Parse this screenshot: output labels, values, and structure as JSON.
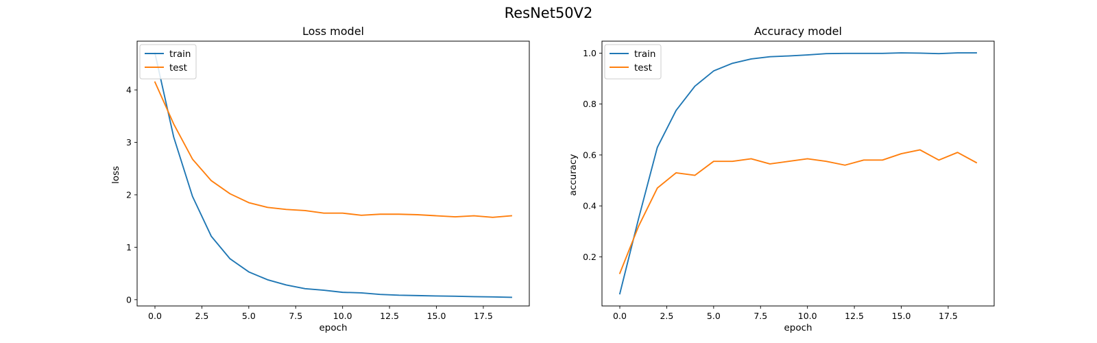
{
  "figure": {
    "suptitle": "ResNet50V2"
  },
  "chart_data": [
    {
      "type": "line",
      "title": "Loss model",
      "xlabel": "epoch",
      "ylabel": "loss",
      "xlim": [
        -0.95,
        19.95
      ],
      "ylim": [
        -0.12,
        4.93
      ],
      "xticks": [
        0,
        2.5,
        5,
        7.5,
        10,
        12.5,
        15,
        17.5
      ],
      "xtick_labels": [
        "0.0",
        "2.5",
        "5.0",
        "7.5",
        "10.0",
        "12.5",
        "15.0",
        "17.5"
      ],
      "yticks": [
        0,
        1,
        2,
        3,
        4
      ],
      "ytick_labels": [
        "0",
        "1",
        "2",
        "3",
        "4"
      ],
      "legend_position": "upper-left",
      "grid": false,
      "x": [
        0,
        1,
        2,
        3,
        4,
        5,
        6,
        7,
        8,
        9,
        10,
        11,
        12,
        13,
        14,
        15,
        16,
        17,
        18,
        19
      ],
      "series": [
        {
          "name": "train",
          "color": "#1f77b4",
          "values": [
            4.7,
            3.1,
            1.97,
            1.21,
            0.78,
            0.53,
            0.38,
            0.28,
            0.21,
            0.18,
            0.14,
            0.13,
            0.1,
            0.085,
            0.078,
            0.07,
            0.065,
            0.057,
            0.052,
            0.045
          ]
        },
        {
          "name": "test",
          "color": "#ff7f0e",
          "values": [
            4.15,
            3.35,
            2.68,
            2.27,
            2.02,
            1.85,
            1.76,
            1.72,
            1.7,
            1.65,
            1.65,
            1.61,
            1.63,
            1.63,
            1.62,
            1.6,
            1.58,
            1.6,
            1.57,
            1.6
          ]
        }
      ]
    },
    {
      "type": "line",
      "title": "Accuracy model",
      "xlabel": "epoch",
      "ylabel": "accuracy",
      "xlim": [
        -0.95,
        19.95
      ],
      "ylim": [
        0.007,
        1.047
      ],
      "xticks": [
        0,
        2.5,
        5,
        7.5,
        10,
        12.5,
        15,
        17.5
      ],
      "xtick_labels": [
        "0.0",
        "2.5",
        "5.0",
        "7.5",
        "10.0",
        "12.5",
        "15.0",
        "17.5"
      ],
      "yticks": [
        0.2,
        0.4,
        0.6,
        0.8,
        1.0
      ],
      "ytick_labels": [
        "0.2",
        "0.4",
        "0.6",
        "0.8",
        "1.0"
      ],
      "legend_position": "upper-left",
      "grid": false,
      "x": [
        0,
        1,
        2,
        3,
        4,
        5,
        6,
        7,
        8,
        9,
        10,
        11,
        12,
        13,
        14,
        15,
        16,
        17,
        18,
        19
      ],
      "series": [
        {
          "name": "train",
          "color": "#1f77b4",
          "values": [
            0.055,
            0.35,
            0.63,
            0.775,
            0.87,
            0.93,
            0.96,
            0.977,
            0.986,
            0.989,
            0.993,
            0.998,
            0.999,
            0.999,
            0.999,
            1.001,
            1.0,
            0.998,
            1.001,
            1.001
          ]
        },
        {
          "name": "test",
          "color": "#ff7f0e",
          "values": [
            0.135,
            0.32,
            0.47,
            0.53,
            0.52,
            0.575,
            0.575,
            0.585,
            0.565,
            0.575,
            0.585,
            0.575,
            0.56,
            0.58,
            0.58,
            0.605,
            0.62,
            0.58,
            0.61,
            0.57
          ]
        }
      ]
    }
  ]
}
